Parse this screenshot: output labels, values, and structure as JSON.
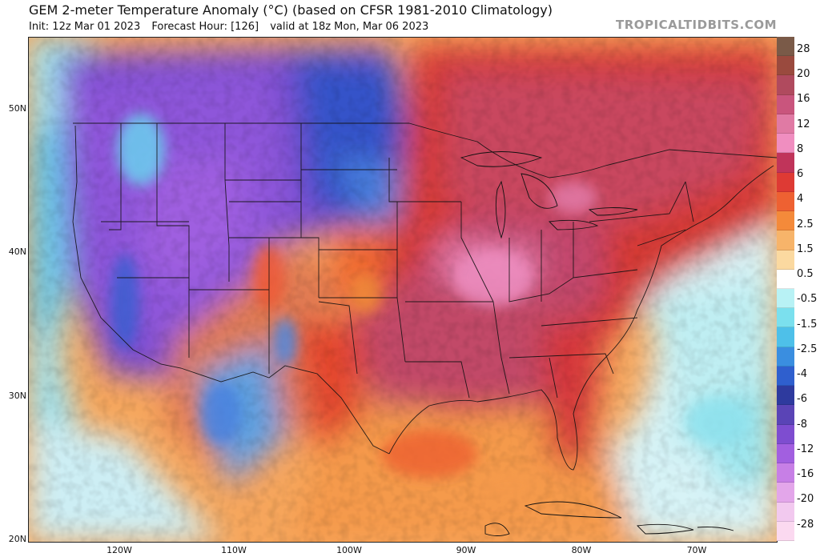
{
  "header": {
    "title": "GEM 2-meter Temperature Anomaly (°C) (based on CFSR 1981-2010 Climatology)",
    "init": "Init: 12z Mar 01 2023",
    "forecast_hour": "Forecast Hour: [126]",
    "valid": "valid at 18z Mon, Mar 06 2023",
    "brand": "TROPICALTIDBITS.COM"
  },
  "axes": {
    "lat_labels": [
      "50N",
      "40N",
      "30N",
      "20N"
    ],
    "lon_labels": [
      "120W",
      "110W",
      "100W",
      "90W",
      "80W",
      "70W"
    ]
  },
  "colorbar": {
    "label_values": [
      "28",
      "20",
      "16",
      "12",
      "8",
      "6",
      "4",
      "2.5",
      "1.5",
      "0.5",
      "-0.5",
      "-1.5",
      "-2.5",
      "-4",
      "-6",
      "-8",
      "-12",
      "-16",
      "-20",
      "-28"
    ],
    "band_colors": [
      "#7a5a48",
      "#9a4a3e",
      "#b04a5e",
      "#c9557d",
      "#e07aa4",
      "#f08ec0",
      "#c0345a",
      "#de3a34",
      "#ee6132",
      "#f48a3a",
      "#f7b46a",
      "#fbd9a0",
      "#ffffff",
      "#b8f2f5",
      "#7be0ee",
      "#4ec0e9",
      "#3a8ee0",
      "#2f5fce",
      "#2e3a9e",
      "#5a44b6",
      "#7e4dd0",
      "#a25fe0",
      "#c77fe6",
      "#e3a6ea",
      "#f2c9ef",
      "#fbd9f0"
    ]
  },
  "map": {
    "palette": {
      "ocean_warm": "#f39a4e",
      "ocean_cool": "#d6f3f8",
      "hot_core": "#c3476d",
      "hot_pink": "#e27aa8",
      "red": "#d8362f",
      "orange": "#ef6f33",
      "cold_purple": "#8a52d6",
      "cold_blue": "#3c74d8",
      "cyan": "#7fd6ee"
    }
  }
}
